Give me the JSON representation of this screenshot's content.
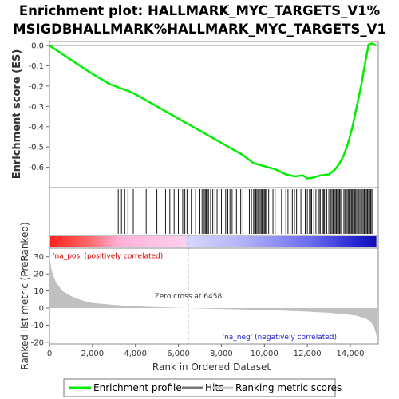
{
  "chart_data": {
    "type": "line",
    "title_line1": "Enrichment plot: HALLMARK_MYC_TARGETS_V1%",
    "title_line2": "MSIGDBHALLMARK%HALLMARK_MYC_TARGETS_V1",
    "xlabel": "Rank in Ordered Dataset",
    "xlim": [
      0,
      15300
    ],
    "xticks": [
      0,
      2000,
      4000,
      6000,
      8000,
      10000,
      12000,
      14000
    ],
    "xtick_labels": [
      "0",
      "2,000",
      "4,000",
      "6,000",
      "8,000",
      "10,000",
      "12,000",
      "14,000"
    ],
    "es_panel": {
      "ylabel": "Enrichment score (ES)",
      "ylim": [
        -0.7,
        0.02
      ],
      "yticks": [
        0.0,
        -0.1,
        -0.2,
        -0.3,
        -0.4,
        -0.5,
        -0.6
      ],
      "ytick_labels": [
        "0.0",
        "-0.1",
        "-0.2",
        "-0.3",
        "-0.4",
        "-0.5",
        "-0.6"
      ],
      "series": [
        {
          "name": "Enrichment profile",
          "color": "#00ee00",
          "x": [
            0,
            1000,
            2000,
            2800,
            3300,
            3700,
            4000,
            5000,
            6000,
            7000,
            8000,
            9000,
            9500,
            10000,
            10500,
            11000,
            11400,
            11800,
            12000,
            12300,
            12600,
            13000,
            13300,
            13500,
            13700,
            13900,
            14100,
            14300,
            14500,
            14700,
            14850,
            15000,
            15200
          ],
          "y": [
            0.0,
            -0.07,
            -0.14,
            -0.19,
            -0.21,
            -0.225,
            -0.24,
            -0.3,
            -0.36,
            -0.42,
            -0.48,
            -0.54,
            -0.58,
            -0.595,
            -0.61,
            -0.635,
            -0.645,
            -0.64,
            -0.655,
            -0.65,
            -0.64,
            -0.635,
            -0.61,
            -0.58,
            -0.54,
            -0.48,
            -0.4,
            -0.3,
            -0.2,
            -0.08,
            0.005,
            0.01,
            0.0
          ]
        }
      ]
    },
    "hits": {
      "name": "Hits",
      "color": "#000000",
      "positions": [
        3200,
        3350,
        3500,
        3650,
        3900,
        4500,
        5000,
        5400,
        5600,
        5800,
        6000,
        6200,
        6300,
        6400,
        6600,
        6800,
        7000,
        7100,
        7150,
        7200,
        7250,
        7300,
        7350,
        7400,
        7500,
        7600,
        7700,
        7800,
        8000,
        8200,
        8300,
        8400,
        8500,
        8700,
        8900,
        9000,
        9300,
        9400,
        9500,
        9550,
        9600,
        9650,
        9700,
        9750,
        9800,
        9850,
        9900,
        9950,
        10000,
        10050,
        10100,
        10200,
        10400,
        10500,
        10800,
        11000,
        11100,
        11200,
        11300,
        11400,
        11500,
        11700,
        11900,
        12000,
        12100,
        12150,
        12200,
        12300,
        12400,
        12500,
        12550,
        12600,
        12700,
        12750,
        12800,
        12900,
        13000,
        13050,
        13100,
        13150,
        13200,
        13250,
        13300,
        13350,
        13400,
        13450,
        13500,
        13550,
        13600,
        13700,
        13750,
        13800,
        13850,
        13900,
        13950,
        14000,
        14050,
        14100,
        14150,
        14200,
        14250,
        14300,
        14350,
        14400,
        14450,
        14500,
        14550,
        14600,
        14650,
        14700,
        14750,
        14800,
        14850,
        14900,
        14950,
        15000,
        15050
      ]
    },
    "metric_panel": {
      "ylabel": "Ranked list metric (PreRanked)",
      "ylim": [
        -21,
        35
      ],
      "yticks": [
        30,
        20,
        10,
        0,
        -10,
        -20
      ],
      "ytick_labels": [
        "30",
        "20",
        "10",
        "0",
        "-10",
        "-20"
      ],
      "series": [
        {
          "name": "Ranking metric scores",
          "color": "#c0c0c0",
          "x": [
            0,
            100,
            300,
            600,
            1000,
            1500,
            2000,
            3000,
            4000,
            5000,
            6000,
            6458,
            7000,
            8000,
            9000,
            10000,
            11000,
            12000,
            13000,
            13800,
            14300,
            14700,
            14950,
            15100,
            15200,
            15250
          ],
          "y": [
            30,
            22,
            15,
            10,
            7,
            4.5,
            3,
            1.8,
            1.0,
            0.5,
            0.15,
            0,
            -0.2,
            -0.5,
            -0.8,
            -1.2,
            -1.6,
            -2.1,
            -2.8,
            -3.6,
            -4.5,
            -6.0,
            -8.0,
            -11.0,
            -15.0,
            -18.5
          ]
        }
      ],
      "zero_cross_label": "Zero cross at 6458",
      "zero_cross_x": 6458,
      "pos_label": "'na_pos' (positively correlated)",
      "neg_label": "'na_neg' (negatively correlated)",
      "pos_label_color": "#d00000",
      "neg_label_color": "#2222cc"
    },
    "legend": {
      "placement": "bottom",
      "items": [
        {
          "label": "Enrichment profile",
          "color": "#00ee00"
        },
        {
          "label": "Hits",
          "color": "#777777"
        },
        {
          "label": "Ranking metric scores",
          "color": "#cccccc"
        }
      ]
    }
  }
}
